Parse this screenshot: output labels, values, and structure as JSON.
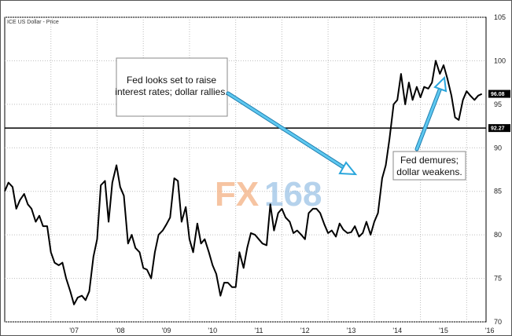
{
  "chart_data": {
    "type": "line",
    "series_label": "ICE US Dollar - Price",
    "x_ticks": [
      "'07",
      "'08",
      "'09",
      "'10",
      "'11",
      "'12",
      "'13",
      "'14",
      "'15",
      "'16"
    ],
    "y_ticks": [
      70,
      75,
      80,
      85,
      90,
      95,
      100,
      105
    ],
    "ylim": [
      70,
      105
    ],
    "xlim": [
      2006.0,
      2016.42
    ],
    "price_badge": "96.08",
    "reference_line": {
      "value": 92.27,
      "label": "92.27"
    },
    "annotations": [
      {
        "lines": [
          "Fed looks set to raise",
          "interest rates; dollar rallies."
        ],
        "arrow_to": [
          2013.5,
          86
        ]
      },
      {
        "lines": [
          "Fed demures;",
          "dollar weakens."
        ],
        "arrow_to": [
          2015.55,
          97.5
        ]
      }
    ],
    "watermark": {
      "part1": "FX",
      "part2": "168"
    },
    "series": [
      {
        "x": [
          2006.0,
          2006.08,
          2006.17,
          2006.25,
          2006.33,
          2006.42,
          2006.5,
          2006.58,
          2006.67,
          2006.75,
          2006.83,
          2006.92,
          2007.0,
          2007.08,
          2007.17,
          2007.25,
          2007.33,
          2007.42,
          2007.5,
          2007.58,
          2007.67,
          2007.75,
          2007.83,
          2007.92,
          2008.0,
          2008.08,
          2008.17,
          2008.25,
          2008.33,
          2008.42,
          2008.5,
          2008.58,
          2008.67,
          2008.75,
          2008.83,
          2008.92,
          2009.0,
          2009.08,
          2009.17,
          2009.25,
          2009.33,
          2009.42,
          2009.5,
          2009.58,
          2009.67,
          2009.75,
          2009.83,
          2009.92,
          2010.0,
          2010.08,
          2010.17,
          2010.25,
          2010.33,
          2010.42,
          2010.5,
          2010.58,
          2010.67,
          2010.75,
          2010.83,
          2010.92,
          2011.0,
          2011.08,
          2011.17,
          2011.25,
          2011.33,
          2011.42,
          2011.5,
          2011.58,
          2011.67,
          2011.75,
          2011.83,
          2011.92,
          2012.0,
          2012.08,
          2012.17,
          2012.25,
          2012.33,
          2012.42,
          2012.5,
          2012.58,
          2012.67,
          2012.75,
          2012.83,
          2012.92,
          2013.0,
          2013.08,
          2013.17,
          2013.25,
          2013.33,
          2013.42,
          2013.5,
          2013.58,
          2013.67,
          2013.75,
          2013.83,
          2013.92,
          2014.0,
          2014.08,
          2014.17,
          2014.25,
          2014.33,
          2014.42,
          2014.5,
          2014.58,
          2014.67,
          2014.75,
          2014.83,
          2014.92,
          2015.0,
          2015.08,
          2015.17,
          2015.25,
          2015.33,
          2015.42,
          2015.5,
          2015.58,
          2015.67,
          2015.75,
          2015.83,
          2015.92,
          2016.0,
          2016.08,
          2016.17,
          2016.25,
          2016.33
        ],
        "y": [
          85.0,
          86.0,
          85.5,
          83.0,
          84.0,
          84.7,
          83.5,
          83.0,
          81.5,
          82.2,
          81.0,
          81.0,
          78.0,
          76.8,
          76.5,
          76.8,
          75.0,
          73.5,
          72.0,
          72.8,
          73.0,
          72.5,
          73.5,
          77.5,
          79.5,
          85.7,
          86.2,
          81.5,
          86.0,
          88.0,
          85.5,
          84.5,
          79.0,
          80.0,
          78.5,
          78.0,
          76.2,
          76.0,
          75.0,
          78.0,
          80.0,
          80.5,
          81.2,
          82.0,
          86.5,
          86.2,
          81.5,
          83.2,
          79.5,
          78.0,
          81.3,
          79.0,
          79.5,
          78.0,
          76.5,
          75.5,
          73.0,
          74.5,
          74.5,
          74.0,
          74.0,
          78.0,
          76.2,
          78.5,
          80.2,
          80.0,
          79.5,
          79.0,
          78.8,
          83.5,
          80.5,
          82.5,
          83.0,
          82.0,
          81.5,
          80.2,
          80.5,
          80.0,
          79.5,
          82.5,
          83.0,
          83.0,
          82.5,
          81.2,
          80.2,
          80.5,
          79.8,
          81.3,
          80.6,
          80.2,
          80.3,
          81.0,
          79.8,
          80.2,
          81.5,
          80.0,
          81.5,
          82.5,
          86.5,
          88.0,
          91.0,
          95.0,
          95.5,
          98.5,
          95.0,
          97.5,
          95.5,
          97.0,
          95.8,
          97.0,
          96.8,
          97.5,
          100.0,
          98.5,
          99.5,
          98.0,
          96.0,
          93.5,
          93.2,
          95.5,
          96.5,
          96.0,
          95.5,
          96.0,
          96.2
        ]
      }
    ]
  }
}
